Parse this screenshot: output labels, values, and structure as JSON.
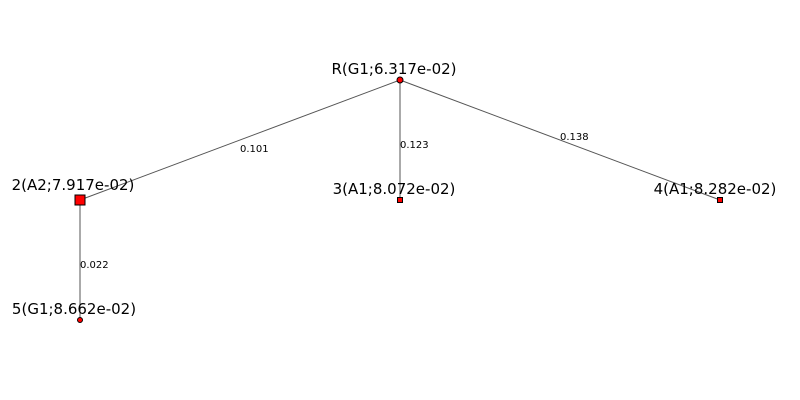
{
  "colors": {
    "node_fill": "#ff0000",
    "node_stroke": "#000000",
    "edge": "#555555",
    "background": "#ffffff"
  },
  "nodes": {
    "root": {
      "label": "R(G1;6.317e-02)",
      "shape": "circle"
    },
    "n2": {
      "label": "2(A2;7.917e-02)",
      "shape": "square-large"
    },
    "n3": {
      "label": "3(A1;8.072e-02)",
      "shape": "square"
    },
    "n4": {
      "label": "4(A1;8.282e-02)",
      "shape": "square"
    },
    "n5": {
      "label": "5(G1;8.662e-02)",
      "shape": "circle"
    }
  },
  "edges": {
    "root_n2": {
      "from": "root",
      "to": "n2",
      "label": "0.101"
    },
    "root_n3": {
      "from": "root",
      "to": "n3",
      "label": "0.123"
    },
    "root_n4": {
      "from": "root",
      "to": "n4",
      "label": "0.138"
    },
    "n2_n5": {
      "from": "n2",
      "to": "n5",
      "label": "0.022"
    }
  }
}
